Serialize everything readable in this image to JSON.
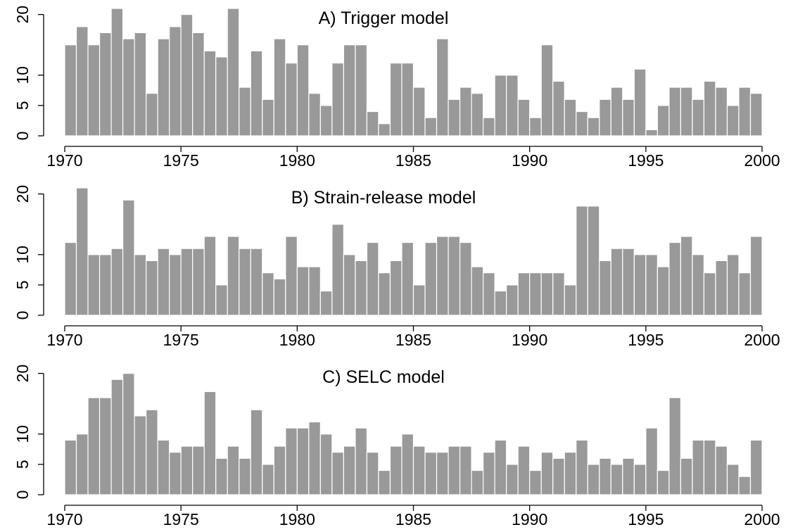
{
  "chart_data": [
    {
      "type": "histogram",
      "title": "A)  Trigger model",
      "color": "#999999",
      "bins": [
        1970,
        1970.5,
        1971,
        1971.5,
        1972,
        1972.5,
        1973,
        1973.5,
        1974,
        1974.5,
        1975,
        1975.5,
        1976,
        1976.5,
        1977,
        1977.5,
        1978,
        1978.5,
        1979,
        1979.5,
        1980,
        1980.5,
        1981,
        1981.5,
        1982,
        1982.5,
        1983,
        1983.5,
        1984,
        1984.5,
        1985,
        1985.5,
        1986,
        1986.5,
        1987,
        1987.5,
        1988,
        1988.5,
        1989,
        1989.5,
        1990,
        1990.5,
        1991,
        1991.5,
        1992,
        1992.5,
        1993,
        1993.5,
        1994,
        1994.5,
        1995,
        1995.5,
        1996,
        1996.5,
        1997,
        1997.5,
        1998,
        1998.5,
        1999,
        1999.5,
        2000
      ],
      "values": [
        15,
        18,
        15,
        17,
        21,
        16,
        17,
        7,
        16,
        18,
        20,
        17,
        14,
        13,
        21,
        8,
        14,
        6,
        16,
        12,
        15,
        7,
        5,
        12,
        15,
        15,
        4,
        2,
        12,
        12,
        8,
        3,
        16,
        6,
        8,
        7,
        3,
        10,
        10,
        6,
        3,
        15,
        9,
        6,
        4,
        3,
        6,
        8,
        6,
        11,
        1,
        5,
        8,
        8,
        6,
        9,
        8,
        5,
        8,
        7
      ],
      "xlim": [
        1970,
        2000
      ],
      "xticks": [
        1970,
        1975,
        1980,
        1985,
        1990,
        1995,
        2000
      ],
      "ylim": [
        0,
        21
      ],
      "yticks": [
        0,
        5,
        10,
        20
      ]
    },
    {
      "type": "histogram",
      "title": "B)  Strain-release model",
      "color": "#999999",
      "bins": [
        1970,
        1970.5,
        1971,
        1971.5,
        1972,
        1972.5,
        1973,
        1973.5,
        1974,
        1974.5,
        1975,
        1975.5,
        1976,
        1976.5,
        1977,
        1977.5,
        1978,
        1978.5,
        1979,
        1979.5,
        1980,
        1980.5,
        1981,
        1981.5,
        1982,
        1982.5,
        1983,
        1983.5,
        1984,
        1984.5,
        1985,
        1985.5,
        1986,
        1986.5,
        1987,
        1987.5,
        1988,
        1988.5,
        1989,
        1989.5,
        1990,
        1990.5,
        1991,
        1991.5,
        1992,
        1992.5,
        1993,
        1993.5,
        1994,
        1994.5,
        1995,
        1995.5,
        1996,
        1996.5,
        1997,
        1997.5,
        1998,
        1998.5,
        1999,
        1999.5,
        2000
      ],
      "values": [
        12,
        21,
        10,
        10,
        11,
        19,
        10,
        9,
        11,
        10,
        11,
        11,
        13,
        5,
        13,
        11,
        11,
        7,
        6,
        13,
        8,
        8,
        4,
        15,
        10,
        9,
        12,
        7,
        9,
        12,
        5,
        12,
        13,
        13,
        12,
        8,
        7,
        4,
        5,
        7,
        7,
        7,
        7,
        5,
        18,
        18,
        9,
        11,
        11,
        10,
        10,
        8,
        12,
        13,
        10,
        7,
        9,
        10,
        7,
        13
      ],
      "xlim": [
        1970,
        2000
      ],
      "xticks": [
        1970,
        1975,
        1980,
        1985,
        1990,
        1995,
        2000
      ],
      "ylim": [
        0,
        21
      ],
      "yticks": [
        0,
        5,
        10,
        20
      ]
    },
    {
      "type": "histogram",
      "title": "C)  SELC model",
      "color": "#999999",
      "bins": [
        1970,
        1970.5,
        1971,
        1971.5,
        1972,
        1972.5,
        1973,
        1973.5,
        1974,
        1974.5,
        1975,
        1975.5,
        1976,
        1976.5,
        1977,
        1977.5,
        1978,
        1978.5,
        1979,
        1979.5,
        1980,
        1980.5,
        1981,
        1981.5,
        1982,
        1982.5,
        1983,
        1983.5,
        1984,
        1984.5,
        1985,
        1985.5,
        1986,
        1986.5,
        1987,
        1987.5,
        1988,
        1988.5,
        1989,
        1989.5,
        1990,
        1990.5,
        1991,
        1991.5,
        1992,
        1992.5,
        1993,
        1993.5,
        1994,
        1994.5,
        1995,
        1995.5,
        1996,
        1996.5,
        1997,
        1997.5,
        1998,
        1998.5,
        1999,
        1999.5,
        2000
      ],
      "values": [
        9,
        10,
        16,
        16,
        19,
        20,
        13,
        14,
        9,
        7,
        8,
        8,
        17,
        6,
        8,
        6,
        14,
        5,
        8,
        11,
        11,
        12,
        10,
        7,
        8,
        11,
        7,
        4,
        8,
        10,
        8,
        7,
        7,
        8,
        8,
        4,
        7,
        9,
        5,
        8,
        4,
        7,
        6,
        7,
        9,
        5,
        6,
        5,
        6,
        5,
        11,
        4,
        16,
        6,
        9,
        9,
        8,
        5,
        3,
        9
      ],
      "xlim": [
        1970,
        2000
      ],
      "xticks": [
        1970,
        1975,
        1980,
        1985,
        1990,
        1995,
        2000
      ],
      "ylim": [
        0,
        21
      ],
      "yticks": [
        0,
        5,
        10,
        20
      ]
    }
  ]
}
